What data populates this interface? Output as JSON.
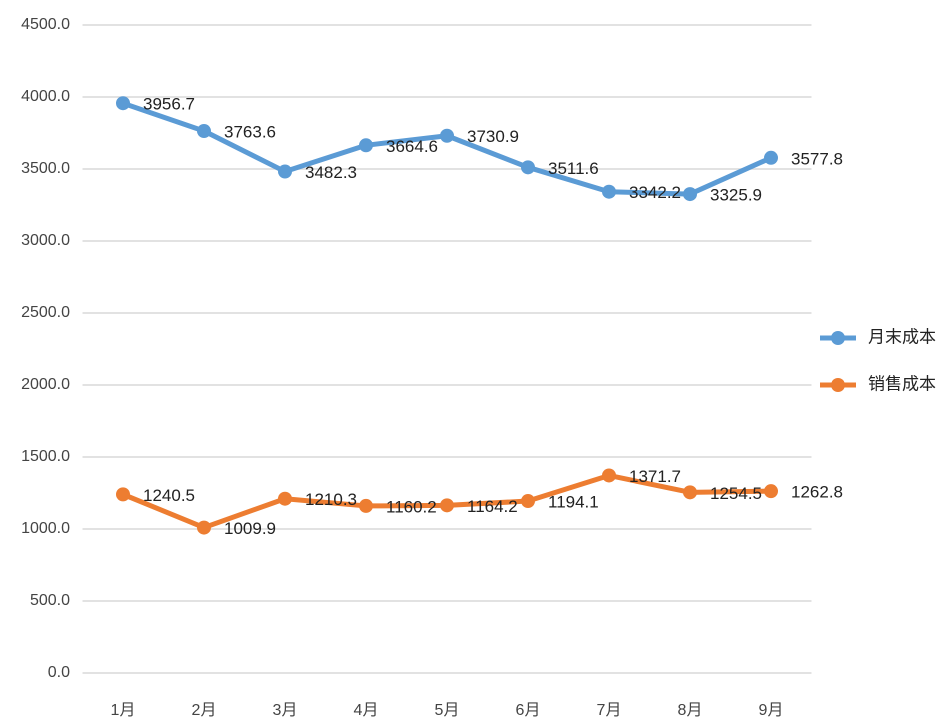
{
  "chart_data": {
    "type": "line",
    "categories": [
      "1月",
      "2月",
      "3月",
      "4月",
      "5月",
      "6月",
      "7月",
      "8月",
      "9月"
    ],
    "series": [
      {
        "name": "月末成本",
        "color": "#5b9bd5",
        "values": [
          3956.7,
          3763.6,
          3482.3,
          3664.6,
          3730.9,
          3511.6,
          3342.2,
          3325.9,
          3577.8
        ]
      },
      {
        "name": "销售成本",
        "color": "#ed7d31",
        "values": [
          1240.5,
          1009.9,
          1210.3,
          1160.2,
          1164.2,
          1194.1,
          1371.7,
          1254.5,
          1262.8
        ]
      }
    ],
    "ylim": [
      0,
      4500
    ],
    "yticks": [
      {
        "value": 0,
        "label": "0.0"
      },
      {
        "value": 500,
        "label": "500.0"
      },
      {
        "value": 1000,
        "label": "1000.0"
      },
      {
        "value": 1500,
        "label": "1500.0"
      },
      {
        "value": 2000,
        "label": "2000.0"
      },
      {
        "value": 2500,
        "label": "2500.0"
      },
      {
        "value": 3000,
        "label": "3000.0"
      },
      {
        "value": 3500,
        "label": "3500.0"
      },
      {
        "value": 4000,
        "label": "4000.0"
      },
      {
        "value": 4500,
        "label": "4500.0"
      }
    ],
    "grid": true,
    "legend": "right"
  }
}
